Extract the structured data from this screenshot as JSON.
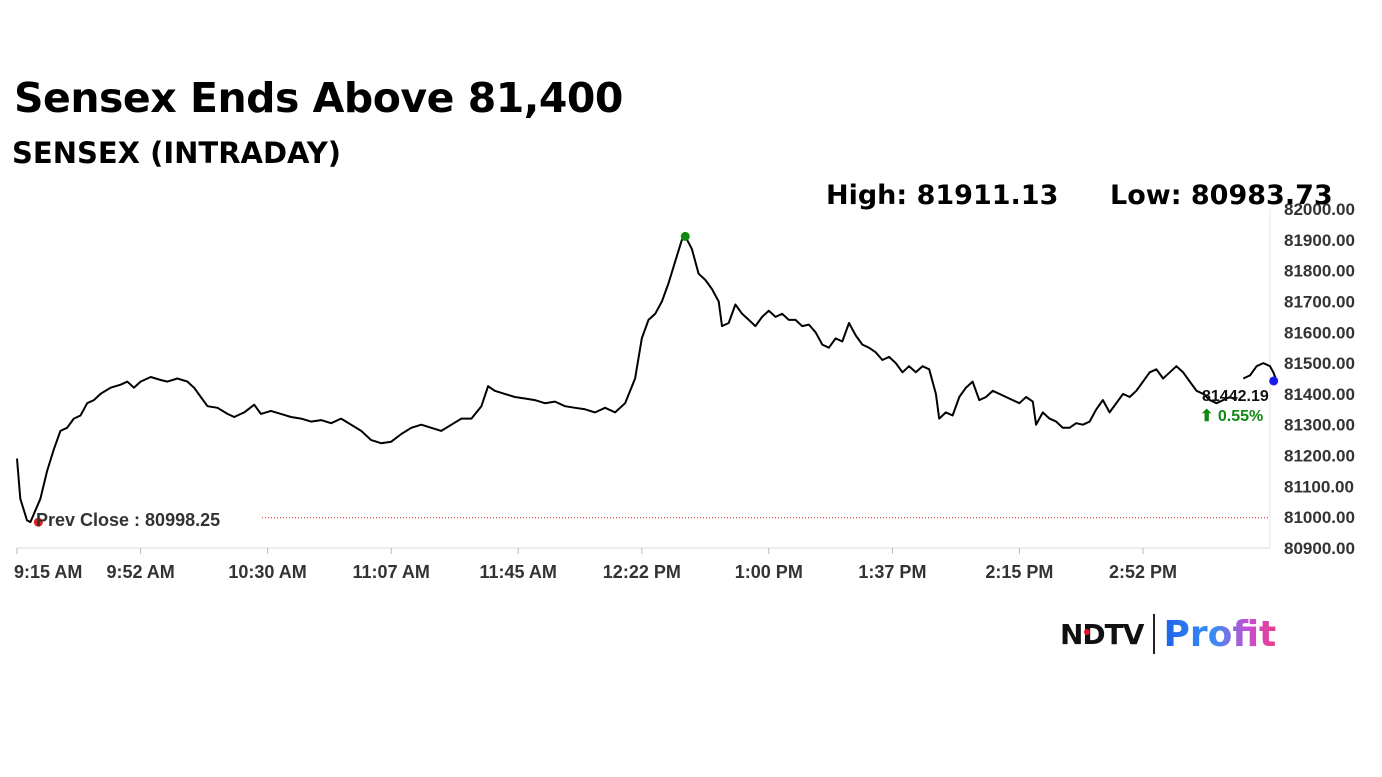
{
  "headline": "Sensex Ends Above 81,400",
  "subtitle": "SENSEX (INTRADAY)",
  "high_label": "High: 81911.13",
  "low_label": "Low: 80983.73",
  "prev_close_label": "Prev Close : 80998.25",
  "last_value_label": "81442.19",
  "change_label": "⬆ 0.55%",
  "brand": {
    "left": "NDTV",
    "right": "Profit"
  },
  "colors": {
    "line": "#000000",
    "prev_close": "#e02020",
    "high_marker": "#118811",
    "low_marker": "#e02020",
    "last_marker": "#1a1aee",
    "change_up": "#118811",
    "axis_text": "#333333"
  },
  "chart_data": {
    "type": "line",
    "title": "SENSEX (INTRADAY)",
    "ylim": [
      80900,
      82000
    ],
    "y_ticks": [
      "81000.00",
      "81100.00",
      "81200.00",
      "81300.00",
      "81400.00",
      "81500.00",
      "81600.00",
      "81700.00",
      "81800.00",
      "81900.00",
      "82000.00",
      "80900.00"
    ],
    "y_tick_values": [
      81000,
      81100,
      81200,
      81300,
      81400,
      81500,
      81600,
      81700,
      81800,
      81900,
      82000,
      80900
    ],
    "x_ticks": [
      "9:15 AM",
      "9:52 AM",
      "10:30 AM",
      "11:07 AM",
      "11:45 AM",
      "12:22 PM",
      "1:00 PM",
      "1:37 PM",
      "2:15 PM",
      "2:52 PM"
    ],
    "x_tick_minutes": [
      555,
      592,
      630,
      667,
      705,
      742,
      780,
      817,
      855,
      892
    ],
    "x_range_minutes": [
      555,
      930
    ],
    "prev_close": 80998.25,
    "high": 81911.13,
    "low": 80983.73,
    "last": 81442.19,
    "change_pct": 0.55,
    "series": [
      {
        "points": [
          [
            555,
            81190
          ],
          [
            556,
            81060
          ],
          [
            558,
            80990
          ],
          [
            559,
            80984
          ],
          [
            562,
            81060
          ],
          [
            564,
            81150
          ],
          [
            566,
            81220
          ],
          [
            568,
            81280
          ],
          [
            570,
            81290
          ],
          [
            572,
            81320
          ],
          [
            574,
            81330
          ],
          [
            576,
            81370
          ],
          [
            578,
            81380
          ],
          [
            580,
            81400
          ],
          [
            583,
            81420
          ],
          [
            586,
            81430
          ],
          [
            588,
            81440
          ],
          [
            590,
            81420
          ],
          [
            592,
            81440
          ],
          [
            595,
            81455
          ],
          [
            598,
            81445
          ],
          [
            600,
            81440
          ],
          [
            603,
            81450
          ],
          [
            606,
            81440
          ],
          [
            608,
            81420
          ],
          [
            610,
            81390
          ],
          [
            612,
            81360
          ],
          [
            615,
            81355
          ],
          [
            618,
            81335
          ],
          [
            620,
            81325
          ],
          [
            623,
            81340
          ],
          [
            626,
            81365
          ],
          [
            628,
            81335
          ],
          [
            631,
            81345
          ],
          [
            634,
            81335
          ],
          [
            637,
            81325
          ],
          [
            640,
            81320
          ],
          [
            643,
            81310
          ],
          [
            646,
            81315
          ],
          [
            649,
            81305
          ],
          [
            652,
            81320
          ],
          [
            655,
            81300
          ],
          [
            658,
            81280
          ],
          [
            661,
            81250
          ],
          [
            664,
            81240
          ],
          [
            667,
            81245
          ],
          [
            670,
            81270
          ],
          [
            673,
            81290
          ],
          [
            676,
            81300
          ],
          [
            679,
            81290
          ],
          [
            682,
            81280
          ],
          [
            685,
            81300
          ],
          [
            688,
            81320
          ],
          [
            691,
            81320
          ],
          [
            694,
            81360
          ],
          [
            696,
            81425
          ],
          [
            698,
            81410
          ],
          [
            701,
            81400
          ],
          [
            704,
            81390
          ],
          [
            707,
            81385
          ],
          [
            710,
            81380
          ],
          [
            713,
            81370
          ],
          [
            716,
            81375
          ],
          [
            719,
            81360
          ],
          [
            722,
            81355
          ],
          [
            725,
            81350
          ],
          [
            728,
            81340
          ],
          [
            731,
            81355
          ],
          [
            734,
            81340
          ],
          [
            737,
            81370
          ],
          [
            740,
            81450
          ],
          [
            742,
            81580
          ],
          [
            744,
            81640
          ],
          [
            746,
            81660
          ],
          [
            748,
            81700
          ],
          [
            750,
            81760
          ],
          [
            752,
            81830
          ],
          [
            754,
            81900
          ],
          [
            755,
            81911
          ],
          [
            757,
            81870
          ],
          [
            759,
            81790
          ],
          [
            761,
            81770
          ],
          [
            763,
            81740
          ],
          [
            765,
            81700
          ],
          [
            766,
            81620
          ],
          [
            768,
            81630
          ],
          [
            770,
            81690
          ],
          [
            772,
            81660
          ],
          [
            774,
            81640
          ],
          [
            776,
            81620
          ],
          [
            778,
            81650
          ],
          [
            780,
            81670
          ],
          [
            782,
            81650
          ],
          [
            784,
            81660
          ],
          [
            786,
            81640
          ],
          [
            788,
            81640
          ],
          [
            790,
            81620
          ],
          [
            792,
            81625
          ],
          [
            794,
            81600
          ],
          [
            796,
            81560
          ],
          [
            798,
            81550
          ],
          [
            800,
            81580
          ],
          [
            802,
            81570
          ],
          [
            804,
            81630
          ],
          [
            806,
            81590
          ],
          [
            808,
            81560
          ],
          [
            810,
            81550
          ],
          [
            812,
            81535
          ],
          [
            814,
            81510
          ],
          [
            816,
            81520
          ],
          [
            818,
            81500
          ],
          [
            820,
            81470
          ],
          [
            822,
            81490
          ],
          [
            824,
            81470
          ],
          [
            826,
            81490
          ],
          [
            828,
            81480
          ],
          [
            830,
            81400
          ],
          [
            831,
            81320
          ],
          [
            833,
            81340
          ],
          [
            835,
            81330
          ],
          [
            837,
            81390
          ],
          [
            839,
            81420
          ],
          [
            841,
            81440
          ],
          [
            843,
            81380
          ],
          [
            845,
            81390
          ],
          [
            847,
            81410
          ],
          [
            849,
            81400
          ],
          [
            851,
            81390
          ],
          [
            853,
            81380
          ],
          [
            855,
            81370
          ],
          [
            857,
            81390
          ],
          [
            859,
            81375
          ],
          [
            860,
            81300
          ],
          [
            862,
            81340
          ],
          [
            864,
            81320
          ],
          [
            866,
            81310
          ],
          [
            868,
            81290
          ],
          [
            870,
            81290
          ],
          [
            872,
            81305
          ],
          [
            874,
            81300
          ],
          [
            876,
            81310
          ],
          [
            878,
            81350
          ],
          [
            880,
            81380
          ],
          [
            882,
            81340
          ],
          [
            884,
            81370
          ],
          [
            886,
            81400
          ],
          [
            888,
            81390
          ],
          [
            890,
            81410
          ],
          [
            892,
            81440
          ],
          [
            894,
            81470
          ],
          [
            896,
            81480
          ],
          [
            898,
            81450
          ],
          [
            900,
            81470
          ],
          [
            902,
            81490
          ],
          [
            904,
            81470
          ],
          [
            906,
            81440
          ],
          [
            908,
            81410
          ],
          [
            910,
            81400
          ],
          [
            912,
            81380
          ],
          [
            914,
            81370
          ],
          [
            916,
            81380
          ],
          [
            918,
            81390
          ],
          [
            920,
            81380
          ]
        ]
      },
      {
        "points": [
          [
            922,
            81450
          ],
          [
            924,
            81460
          ],
          [
            926,
            81490
          ],
          [
            928,
            81500
          ],
          [
            930,
            81490
          ],
          [
            931,
            81470
          ],
          [
            932,
            81442
          ]
        ]
      }
    ]
  }
}
